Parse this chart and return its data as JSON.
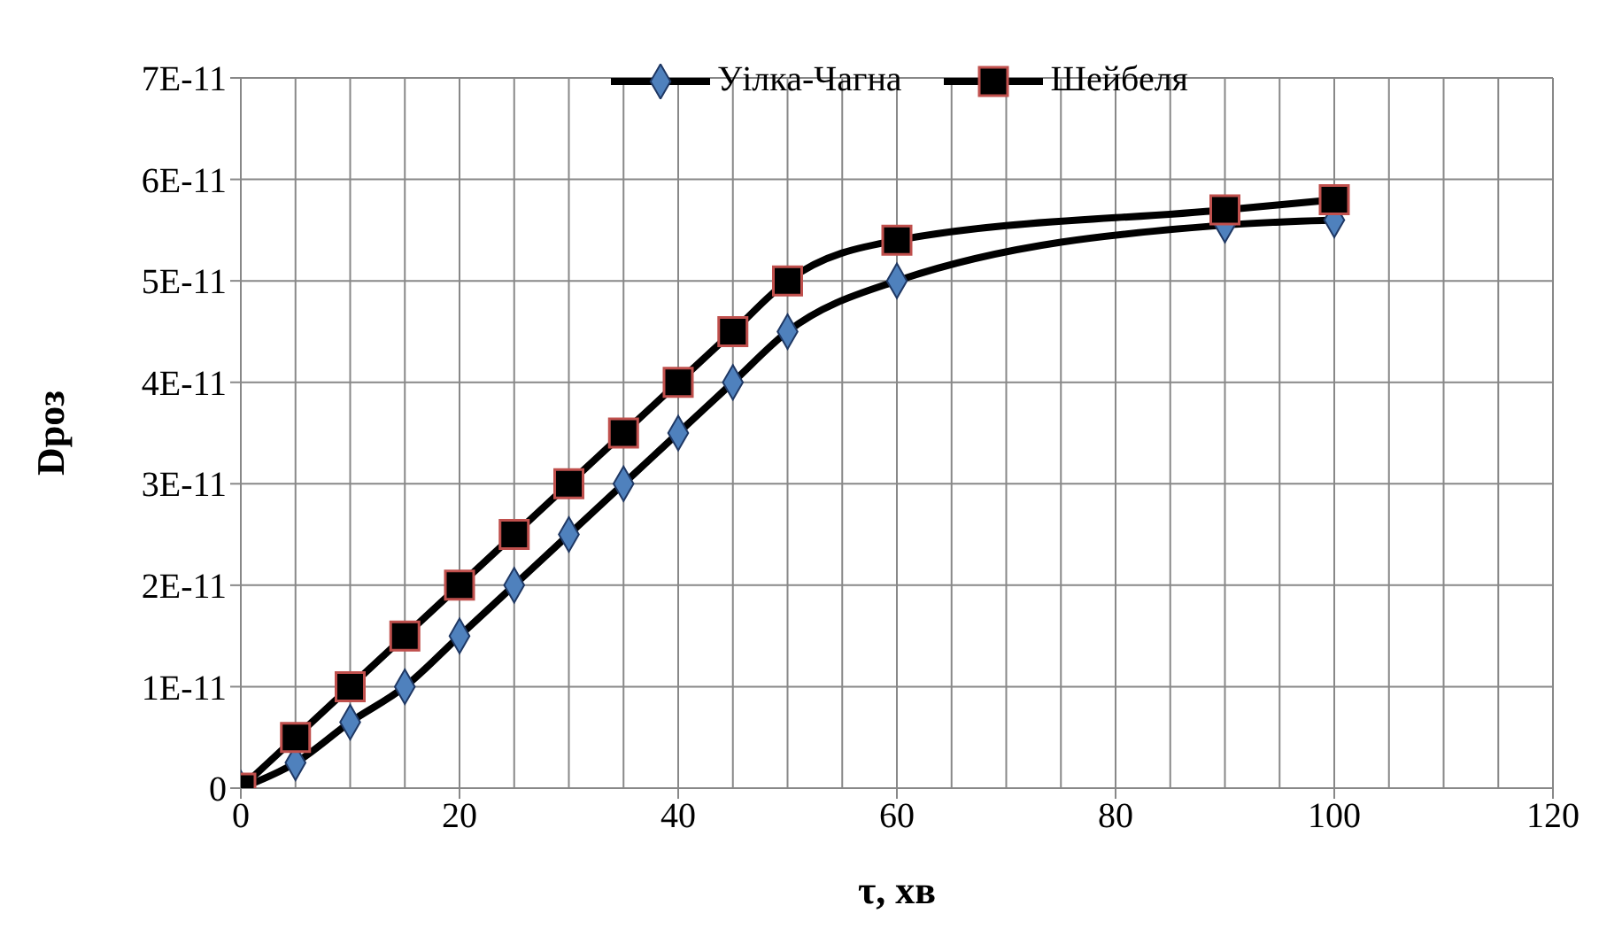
{
  "chart_data": {
    "type": "line",
    "xlabel": "τ, хв",
    "ylabel": "Dроз",
    "x": [
      0,
      5,
      10,
      15,
      20,
      25,
      30,
      35,
      40,
      45,
      50,
      60,
      90,
      100
    ],
    "series": [
      {
        "name": "Уілка-Чагна",
        "color": "#4f81bd",
        "marker": "diamond",
        "values": [
          0,
          2.5e-12,
          6.5e-12,
          1e-11,
          1.5e-11,
          2e-11,
          2.5e-11,
          3e-11,
          3.5e-11,
          4e-11,
          4.5e-11,
          5e-11,
          5.55e-11,
          5.6e-11
        ]
      },
      {
        "name": "Шейбеля",
        "color": "#000000",
        "marker": "square",
        "values": [
          0,
          5e-12,
          1e-11,
          1.5e-11,
          2e-11,
          2.5e-11,
          3e-11,
          3.5e-11,
          4e-11,
          4.5e-11,
          5e-11,
          5.4e-11,
          5.7e-11,
          5.8e-11
        ]
      }
    ],
    "xlim": [
      0,
      120
    ],
    "xticks": [
      0,
      20,
      40,
      60,
      80,
      100,
      120
    ],
    "ylim": [
      0,
      7e-11
    ],
    "yticks": [
      0,
      {
        "value": 1e-11,
        "label": "1E-11"
      },
      {
        "value": 2e-11,
        "label": "2E-11"
      },
      {
        "value": 3e-11,
        "label": "3E-11"
      },
      {
        "value": 4e-11,
        "label": "4E-11"
      },
      {
        "value": 5e-11,
        "label": "5E-11"
      },
      {
        "value": 6e-11,
        "label": "6E-11"
      },
      {
        "value": 7e-11,
        "label": "7E-11"
      }
    ],
    "grid": true,
    "legend": "top",
    "line_style": "solid"
  }
}
